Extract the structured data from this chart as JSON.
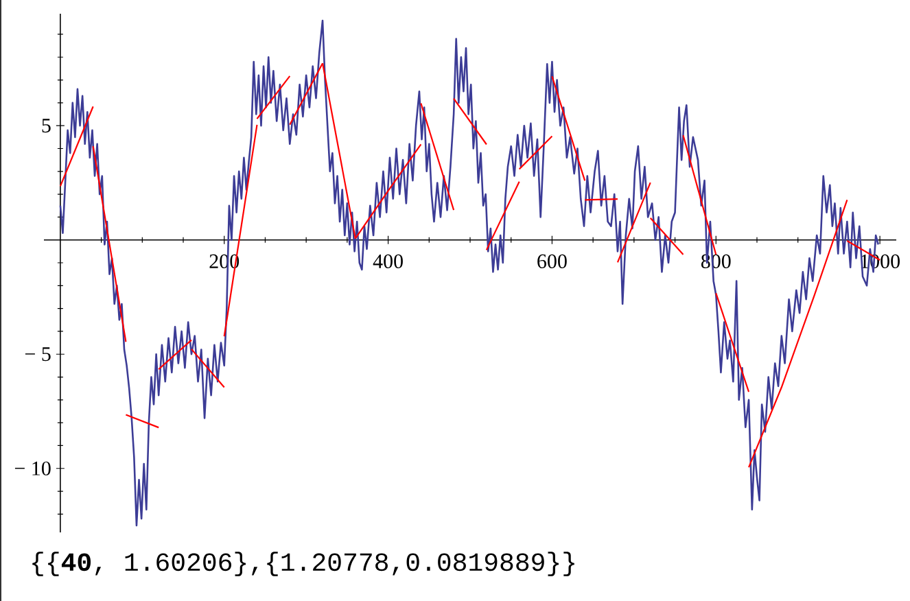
{
  "chart_data": {
    "type": "line",
    "xlim": [
      -20,
      1020
    ],
    "ylim": [
      -12.8,
      9.9
    ],
    "xticks": [
      200,
      400,
      600,
      800,
      1000,
      {
        "value": 50,
        "label": null
      },
      {
        "value": 100,
        "label": null
      },
      {
        "value": 150,
        "label": null
      },
      {
        "value": 250,
        "label": null
      },
      {
        "value": 300,
        "label": null
      },
      {
        "value": 350,
        "label": null
      },
      {
        "value": 450,
        "label": null
      },
      {
        "value": 500,
        "label": null
      },
      {
        "value": 550,
        "label": null
      },
      {
        "value": 650,
        "label": null
      },
      {
        "value": 700,
        "label": null
      },
      {
        "value": 750,
        "label": null
      },
      {
        "value": 850,
        "label": null
      },
      {
        "value": 900,
        "label": null
      },
      {
        "value": 950,
        "label": null
      }
    ],
    "yticks": [
      5,
      {
        "value": -5,
        "label": "− 5"
      },
      {
        "value": -10,
        "label": "− 10"
      },
      {
        "value": 1,
        "label": null
      },
      {
        "value": 2,
        "label": null
      },
      {
        "value": 3,
        "label": null
      },
      {
        "value": 4,
        "label": null
      },
      {
        "value": 6,
        "label": null
      },
      {
        "value": 7,
        "label": null
      },
      {
        "value": 8,
        "label": null
      },
      {
        "value": 9,
        "label": null
      },
      {
        "value": -1,
        "label": null
      },
      {
        "value": -2,
        "label": null
      },
      {
        "value": -3,
        "label": null
      },
      {
        "value": -4,
        "label": null
      },
      {
        "value": -6,
        "label": null
      },
      {
        "value": -7,
        "label": null
      },
      {
        "value": -8,
        "label": null
      },
      {
        "value": -9,
        "label": null
      },
      {
        "value": -11,
        "label": null
      },
      {
        "value": -12,
        "label": null
      }
    ],
    "annotations": [
      "{{**40**, 1.60206},{1.20778,0.0819889}}"
    ],
    "series": [
      {
        "color": "#3c3c96",
        "x": [
          0,
          3,
          6,
          9,
          12,
          15,
          18,
          21,
          24,
          27,
          30,
          33,
          36,
          39,
          42,
          45,
          48,
          51,
          54,
          57,
          60,
          63,
          66,
          69,
          72,
          75,
          78,
          81,
          84,
          87,
          90,
          93,
          96,
          99,
          102,
          105,
          108,
          111,
          114,
          117,
          120,
          124,
          128,
          132,
          136,
          140,
          144,
          148,
          152,
          156,
          160,
          164,
          168,
          172,
          176,
          180,
          184,
          188,
          192,
          196,
          200,
          203,
          206,
          209,
          212,
          215,
          218,
          221,
          224,
          227,
          230,
          233,
          236,
          239,
          242,
          245,
          248,
          251,
          254,
          257,
          260,
          264,
          268,
          272,
          276,
          280,
          284,
          288,
          292,
          296,
          300,
          304,
          308,
          312,
          316,
          320,
          323,
          326,
          329,
          332,
          335,
          338,
          341,
          344,
          347,
          350,
          353,
          356,
          359,
          362,
          365,
          368,
          371,
          374,
          378,
          382,
          386,
          390,
          394,
          398,
          402,
          406,
          410,
          414,
          418,
          422,
          426,
          430,
          434,
          438,
          441,
          444,
          447,
          450,
          453,
          456,
          460,
          464,
          468,
          472,
          476,
          480,
          483,
          486,
          489,
          492,
          495,
          498,
          501,
          504,
          507,
          510,
          513,
          516,
          519,
          522,
          525,
          528,
          531,
          534,
          537,
          540,
          543,
          546,
          550,
          554,
          558,
          562,
          566,
          570,
          574,
          578,
          582,
          586,
          590,
          594,
          597,
          600,
          603,
          606,
          610,
          614,
          618,
          622,
          627,
          631,
          635,
          639,
          643,
          647,
          652,
          656,
          660,
          664,
          668,
          672,
          676,
          680,
          683,
          686,
          690,
          694,
          698,
          701,
          705,
          709,
          713,
          717,
          722,
          726,
          730,
          734,
          738,
          742,
          746,
          750,
          753,
          755,
          758,
          761,
          764,
          768,
          772,
          778,
          782,
          786,
          789,
          793,
          797,
          800,
          803,
          806,
          810,
          814,
          817,
          821,
          825,
          828,
          832,
          836,
          840,
          844,
          847,
          850,
          853,
          856,
          860,
          864,
          868,
          872,
          876,
          880,
          884,
          889,
          893,
          898,
          902,
          906,
          910,
          914,
          918,
          923,
          927,
          931,
          935,
          939,
          942,
          945,
          949,
          952,
          956,
          960,
          964,
          967,
          971,
          975,
          979,
          984,
          988,
          992,
          995,
          998
        ],
        "values": [
          1.5,
          0.3,
          2.5,
          4.8,
          3.8,
          6.0,
          4.5,
          6.6,
          5.0,
          6.3,
          4.2,
          5.6,
          3.6,
          4.8,
          2.8,
          4.2,
          2.0,
          2.8,
          -0.2,
          0.8,
          -1.5,
          -0.8,
          -2.8,
          -2.0,
          -3.5,
          -2.8,
          -4.8,
          -5.5,
          -6.5,
          -7.8,
          -9.5,
          -12.5,
          -10.5,
          -12.2,
          -9.8,
          -11.8,
          -8.0,
          -6.0,
          -7.2,
          -5.0,
          -6.8,
          -4.6,
          -6.2,
          -4.3,
          -5.8,
          -3.8,
          -5.4,
          -4.0,
          -5.6,
          -3.6,
          -5.0,
          -4.2,
          -6.2,
          -4.8,
          -7.8,
          -5.2,
          -6.8,
          -4.6,
          -6.2,
          -4.5,
          -5.5,
          -3.0,
          1.5,
          0.0,
          2.8,
          1.2,
          3.0,
          1.8,
          3.6,
          2.2,
          3.4,
          4.5,
          7.8,
          5.5,
          7.2,
          5.0,
          7.6,
          5.8,
          8.0,
          6.0,
          7.4,
          5.2,
          6.8,
          4.8,
          6.2,
          4.2,
          5.5,
          4.6,
          6.8,
          5.4,
          7.2,
          5.8,
          7.6,
          6.2,
          8.2,
          9.6,
          7.0,
          5.0,
          3.0,
          3.8,
          1.6,
          2.8,
          0.8,
          2.2,
          0.2,
          1.6,
          -0.2,
          1.2,
          -0.5,
          0.8,
          -1.0,
          -1.3,
          0.6,
          -0.4,
          1.5,
          0.2,
          2.5,
          1.0,
          3.0,
          1.2,
          3.6,
          1.8,
          4.0,
          2.0,
          3.5,
          1.6,
          4.2,
          2.6,
          5.0,
          6.5,
          4.4,
          5.8,
          3.0,
          4.2,
          2.0,
          0.8,
          2.5,
          1.0,
          2.8,
          1.3,
          3.2,
          5.5,
          8.8,
          6.0,
          8.0,
          6.5,
          8.4,
          5.5,
          6.8,
          4.0,
          5.2,
          2.5,
          3.8,
          1.5,
          2.0,
          -0.5,
          0.5,
          -1.4,
          -0.2,
          -1.3,
          0.2,
          -1.0,
          1.8,
          3.2,
          4.1,
          2.8,
          4.6,
          3.2,
          5.0,
          3.6,
          5.1,
          2.8,
          4.4,
          1.0,
          4.2,
          7.7,
          6.0,
          7.8,
          5.6,
          7.0,
          5.0,
          5.8,
          3.6,
          4.5,
          2.9,
          4.0,
          1.8,
          0.6,
          2.8,
          1.2,
          3.0,
          3.9,
          1.5,
          2.8,
          0.8,
          0.6,
          2.0,
          -0.5,
          0.8,
          -2.8,
          0.2,
          1.8,
          0.5,
          3.0,
          4.1,
          1.8,
          3.2,
          1.0,
          1.6,
          0.0,
          1.0,
          -1.4,
          0.2,
          -1.0,
          0.8,
          1.2,
          4.0,
          5.8,
          3.5,
          5.2,
          5.9,
          3.2,
          4.5,
          3.5,
          1.5,
          2.6,
          -1.0,
          0.8,
          -1.8,
          -2.4,
          -4.0,
          -5.8,
          -3.6,
          -5.2,
          -4.4,
          -6.2,
          -1.8,
          -7.0,
          -5.6,
          -8.2,
          -7.0,
          -11.8,
          -9.2,
          -10.4,
          -11.4,
          -7.2,
          -8.4,
          -6.0,
          -7.4,
          -5.4,
          -6.4,
          -4.2,
          -5.4,
          -2.6,
          -4.0,
          -2.2,
          -3.2,
          -1.4,
          -2.6,
          -0.8,
          -1.8,
          0.2,
          -0.6,
          2.8,
          1.2,
          2.4,
          0.6,
          1.6,
          -0.6,
          1.4,
          -0.6,
          0.8,
          -1.2,
          1.2,
          -0.8,
          0.6,
          -1.6,
          -2.0,
          -0.4,
          -1.4,
          0.2,
          -0.2
        ]
      },
      {
        "color": "#ff0000",
        "x": [
          0,
          40
        ],
        "values": [
          2.35,
          5.84
        ]
      },
      {
        "color": "#ff0000",
        "x": [
          40,
          80
        ],
        "values": [
          4.1,
          -4.46
        ]
      },
      {
        "color": "#ff0000",
        "x": [
          80,
          120
        ],
        "values": [
          -7.65,
          -8.21
        ]
      },
      {
        "color": "#ff0000",
        "x": [
          120,
          160
        ],
        "values": [
          -5.66,
          -4.38
        ]
      },
      {
        "color": "#ff0000",
        "x": [
          160,
          200
        ],
        "values": [
          -4.78,
          -6.45
        ]
      },
      {
        "color": "#ff0000",
        "x": [
          200,
          240
        ],
        "values": [
          -4.22,
          5.04
        ]
      },
      {
        "color": "#ff0000",
        "x": [
          240,
          280
        ],
        "values": [
          5.3,
          7.17
        ]
      },
      {
        "color": "#ff0000",
        "x": [
          280,
          320
        ],
        "values": [
          5.04,
          7.73
        ]
      },
      {
        "color": "#ff0000",
        "x": [
          320,
          360
        ],
        "values": [
          7.73,
          0.06
        ]
      },
      {
        "color": "#ff0000",
        "x": [
          360,
          400,
          440
        ],
        "values": [
          0.06,
          2.15,
          4.18
        ]
      },
      {
        "color": "#ff0000",
        "x": [
          440,
          480
        ],
        "values": [
          5.98,
          1.31
        ]
      },
      {
        "color": "#ff0000",
        "x": [
          480,
          520
        ],
        "values": [
          6.19,
          4.18
        ]
      },
      {
        "color": "#ff0000",
        "x": [
          520,
          560
        ],
        "values": [
          -0.44,
          2.55
        ]
      },
      {
        "color": "#ff0000",
        "x": [
          560,
          600
        ],
        "values": [
          3.1,
          4.54
        ]
      },
      {
        "color": "#ff0000",
        "x": [
          600,
          640
        ],
        "values": [
          7.16,
          2.59
        ]
      },
      {
        "color": "#ff0000",
        "x": [
          640,
          680
        ],
        "values": [
          1.75,
          1.79
        ]
      },
      {
        "color": "#ff0000",
        "x": [
          680,
          720
        ],
        "values": [
          -0.98,
          2.51
        ]
      },
      {
        "color": "#ff0000",
        "x": [
          720,
          760
        ],
        "values": [
          0.96,
          -0.64
        ]
      },
      {
        "color": "#ff0000",
        "x": [
          760,
          800
        ],
        "values": [
          4.58,
          -0.64
        ]
      },
      {
        "color": "#ff0000",
        "x": [
          800,
          840
        ],
        "values": [
          -2.33,
          -6.65
        ]
      },
      {
        "color": "#ff0000",
        "x": [
          840,
          880,
          920,
          960
        ],
        "values": [
          -9.95,
          -6.45,
          -2.43,
          1.75
        ]
      },
      {
        "color": "#ff0000",
        "x": [
          960,
          1000
        ],
        "values": [
          -0.04,
          -0.88
        ]
      }
    ]
  }
}
